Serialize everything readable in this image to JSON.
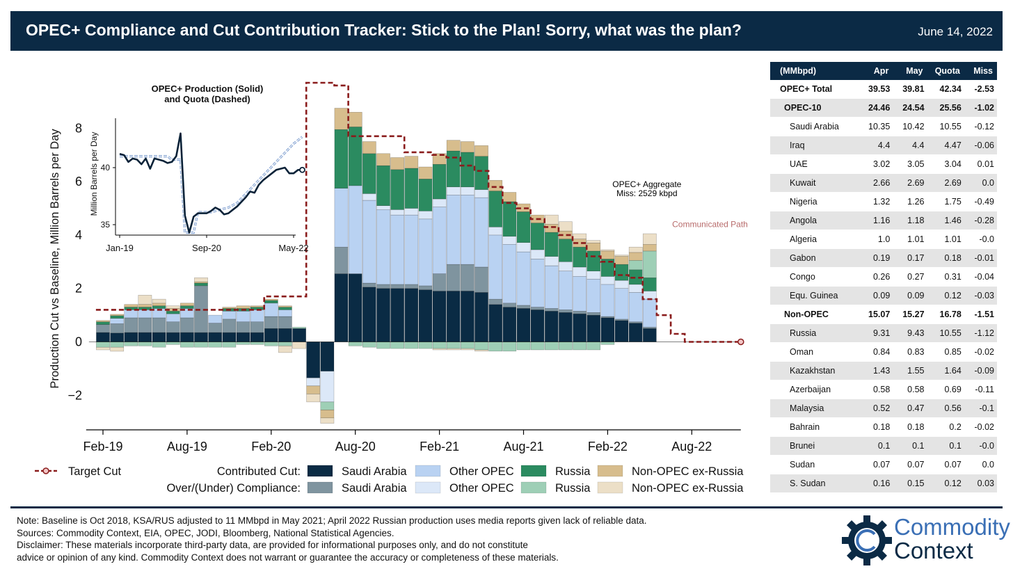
{
  "header": {
    "title": "OPEC+ Compliance and Cut Contribution Tracker: Stick to the Plan! Sorry, what was the plan?",
    "date": "June 14, 2022"
  },
  "colors": {
    "saudi_contrib": "#0a2b44",
    "saudi_over": "#7f949f",
    "other_contrib": "#b9d2f2",
    "other_over": "#dce8f8",
    "russia_contrib": "#2b8b60",
    "russia_over": "#9ecfb6",
    "nonopec_contrib": "#d7bd8d",
    "nonopec_over": "#ecdfc7",
    "target": "#8a1c1c",
    "header_bg": "#0b2a45"
  },
  "chart_data": [
    {
      "type": "bar",
      "stacked": true,
      "title": "",
      "xlabel": "",
      "ylabel": "Production Cut vs Baseline, Million Barrels per Day",
      "ylim": [
        -3.3,
        10
      ],
      "yticks": [
        -2,
        0,
        2,
        4,
        6,
        8
      ],
      "ytick_labels": [
        "−2",
        "0",
        "2",
        "4",
        "6",
        "8"
      ],
      "xtick_labels": [
        "Feb-19",
        "Aug-19",
        "Feb-20",
        "Aug-20",
        "Feb-21",
        "Aug-21",
        "Feb-22",
        "Aug-22"
      ],
      "xtick_month_index": [
        0,
        6,
        12,
        18,
        24,
        30,
        36,
        42
      ],
      "months_axis_end": 45.5,
      "categories": [
        "Jan-19",
        "Feb-19",
        "Mar-19",
        "Apr-19",
        "May-19",
        "Jun-19",
        "Jul-19",
        "Aug-19",
        "Sep-19",
        "Oct-19",
        "Nov-19",
        "Dec-19",
        "Jan-20",
        "Feb-20",
        "Mar-20",
        "Apr-20",
        "May-20",
        "Jun-20",
        "Jul-20",
        "Aug-20",
        "Sep-20",
        "Oct-20",
        "Nov-20",
        "Dec-20",
        "Jan-21",
        "Feb-21",
        "Mar-21",
        "Apr-21",
        "May-21",
        "Jun-21",
        "Jul-21",
        "Aug-21",
        "Sep-21",
        "Oct-21",
        "Nov-21",
        "Dec-21",
        "Jan-22",
        "Feb-22",
        "Mar-22",
        "Apr-22"
      ],
      "series": [
        {
          "name": "Saudi Arabia (Contributed Cut)",
          "color_key": "saudi_contrib",
          "values": [
            0.35,
            0.33,
            0.35,
            0.35,
            0.35,
            0.35,
            0.35,
            0.35,
            0.35,
            0.35,
            0.35,
            0.35,
            0.5,
            0.5,
            0.5,
            -1.35,
            -1.1,
            2.55,
            2.55,
            2.05,
            2.0,
            2.0,
            2.0,
            1.95,
            1.9,
            1.9,
            1.9,
            1.85,
            1.4,
            1.3,
            1.25,
            1.2,
            1.15,
            1.1,
            1.05,
            1.0,
            0.9,
            0.8,
            0.7,
            0.5
          ]
        },
        {
          "name": "Saudi Arabia (Over/(Under) Compliance)",
          "color_key": "saudi_over",
          "values": [
            0.3,
            0.35,
            0.55,
            0.55,
            0.55,
            0.4,
            0.55,
            1.75,
            0.35,
            0.5,
            0.4,
            0.4,
            0.45,
            0.45,
            0.0,
            0.0,
            0.0,
            1.0,
            0.0,
            0.15,
            0.15,
            0.15,
            0.15,
            0.15,
            0.65,
            1.0,
            1.0,
            0.95,
            0.2,
            0.15,
            0.12,
            0.1,
            0.1,
            0.1,
            0.1,
            0.1,
            0.05,
            0.05,
            0.05,
            0.05
          ]
        },
        {
          "name": "Other OPEC (Contributed Cut)",
          "color_key": "other_contrib",
          "values": [
            0.0,
            0.2,
            0.3,
            0.3,
            0.35,
            0.3,
            0.35,
            0.0,
            0.3,
            0.3,
            0.4,
            0.45,
            0.5,
            0.25,
            0.0,
            0.0,
            0.0,
            2.2,
            3.3,
            3.1,
            2.8,
            2.6,
            2.6,
            2.5,
            2.5,
            2.6,
            2.6,
            2.6,
            2.4,
            2.2,
            2.0,
            1.8,
            1.6,
            1.45,
            1.3,
            1.25,
            1.2,
            1.15,
            1.1,
            1.05
          ]
        },
        {
          "name": "Other OPEC (Over/(Under) Compliance)",
          "color_key": "other_over",
          "values": [
            0.0,
            0.0,
            0.0,
            0.0,
            0.0,
            0.0,
            0.0,
            0.0,
            0.0,
            0.0,
            0.0,
            0.0,
            0.0,
            0.0,
            0.0,
            -0.3,
            -1.15,
            0.0,
            0.0,
            0.25,
            0.15,
            0.2,
            0.25,
            0.3,
            0.3,
            0.3,
            0.3,
            0.3,
            0.3,
            0.3,
            0.35,
            0.35,
            0.35,
            0.35,
            0.35,
            0.3,
            0.3,
            0.3,
            0.3,
            0.3
          ]
        },
        {
          "name": "Russia (Contributed Cut)",
          "color_key": "russia_contrib",
          "values": [
            0.1,
            0.1,
            0.1,
            0.1,
            0.1,
            0.1,
            0.1,
            0.1,
            0.0,
            0.1,
            0.1,
            0.1,
            0.1,
            0.1,
            0.0,
            0.0,
            0.0,
            2.2,
            2.2,
            1.5,
            1.5,
            1.5,
            1.5,
            1.2,
            1.3,
            1.35,
            1.3,
            1.25,
            1.35,
            1.3,
            1.15,
            1.0,
            0.9,
            0.85,
            0.75,
            0.75,
            0.65,
            0.6,
            0.55,
            0.5
          ]
        },
        {
          "name": "Russia (Over/(Under) Compliance)",
          "color_key": "russia_over",
          "values": [
            -0.2,
            -0.2,
            -0.15,
            -0.15,
            -0.2,
            -0.1,
            -0.2,
            -0.2,
            -0.2,
            -0.2,
            -0.1,
            -0.1,
            -0.15,
            -0.15,
            0.05,
            0.0,
            -0.3,
            0.0,
            -0.15,
            -0.2,
            -0.25,
            -0.25,
            -0.25,
            -0.25,
            -0.25,
            -0.25,
            -0.25,
            -0.3,
            -0.35,
            -0.35,
            -0.3,
            -0.3,
            -0.3,
            -0.3,
            -0.3,
            -0.3,
            -0.1,
            0.0,
            0.35,
            1.0
          ]
        },
        {
          "name": "Non-OPEC ex-Russia (Contributed Cut)",
          "color_key": "nonopec_contrib",
          "values": [
            0.05,
            0.05,
            0.1,
            0.1,
            0.1,
            0.1,
            0.1,
            0.05,
            0.0,
            0.05,
            0.1,
            0.05,
            0.05,
            0.05,
            0.0,
            -0.3,
            -0.3,
            0.8,
            0.55,
            0.45,
            0.45,
            0.45,
            0.45,
            0.45,
            0.4,
            0.4,
            0.4,
            0.4,
            0.4,
            0.35,
            0.3,
            0.3,
            0.3,
            0.3,
            0.3,
            0.3,
            0.3,
            0.3,
            0.3,
            0.25
          ]
        },
        {
          "name": "Non-OPEC ex-Russia (Over/(Under) Compliance)",
          "color_key": "nonopec_over",
          "values": [
            -0.1,
            -0.15,
            0.0,
            0.35,
            0.15,
            0.1,
            0.0,
            0.15,
            0.0,
            0.0,
            0.0,
            0.0,
            0.0,
            -0.25,
            -0.25,
            -0.3,
            -0.2,
            0.0,
            0.0,
            0.0,
            0.0,
            0.0,
            0.0,
            0.0,
            -0.05,
            -0.05,
            -0.05,
            -0.05,
            0.0,
            0.0,
            0.0,
            0.0,
            0.35,
            0.35,
            0.2,
            0.1,
            0.05,
            0.05,
            0.2,
            0.4
          ]
        }
      ],
      "target_cut": {
        "name": "Target Cut",
        "months": [
          0,
          1,
          2,
          3,
          4,
          5,
          6,
          7,
          8,
          9,
          10,
          11,
          12,
          13,
          14,
          15,
          16,
          17,
          18,
          19,
          20,
          21,
          22,
          23,
          24,
          25,
          26,
          27,
          28,
          29,
          30,
          31,
          32,
          33,
          34,
          35,
          36,
          37,
          38,
          39,
          40,
          41,
          42,
          43,
          44,
          45
        ],
        "values": [
          1.2,
          1.2,
          1.2,
          1.2,
          1.2,
          1.2,
          1.2,
          1.2,
          1.2,
          1.2,
          1.2,
          1.2,
          1.7,
          1.7,
          1.7,
          9.7,
          9.7,
          9.6,
          7.7,
          7.7,
          7.7,
          7.7,
          7.1,
          7.1,
          7.0,
          6.9,
          6.6,
          6.4,
          5.8,
          5.2,
          5.0,
          4.6,
          4.3,
          4.0,
          3.7,
          3.2,
          3.0,
          2.5,
          2.4,
          1.6,
          1.0,
          0.3,
          0.0,
          0.0,
          0.0,
          0.0
        ]
      },
      "annotations": [
        {
          "text": "OPEC+ Aggregate",
          "month": 38.8,
          "y": 5.8
        },
        {
          "text": "Miss: 2529 kbpd",
          "month": 38.8,
          "y": 5.45
        }
      ],
      "path_label": {
        "text": "Communicated Path",
        "month": 43.3,
        "y": 4.3
      }
    },
    {
      "type": "line",
      "title": "OPEC+ Production (Solid) and Quota (Dashed)",
      "title_lines": [
        "OPEC+ Production (Solid)",
        "and Quota (Dashed)"
      ],
      "ylabel": "Million Barrels per Day",
      "ylim": [
        34,
        45
      ],
      "yticks": [
        35,
        40
      ],
      "xtick_labels": [
        "Jan-19",
        "Sep-20",
        "May-22"
      ],
      "xtick_month_index": [
        0,
        20,
        40
      ],
      "x": [
        0,
        1,
        2,
        3,
        4,
        5,
        6,
        7,
        8,
        9,
        10,
        11,
        12,
        13,
        14,
        15,
        16,
        17,
        18,
        19,
        20,
        21,
        22,
        23,
        24,
        25,
        26,
        27,
        28,
        29,
        30,
        31,
        32,
        33,
        34,
        35,
        36,
        37,
        38,
        39,
        40,
        41,
        42
      ],
      "series": [
        {
          "name": "Production",
          "style": "solid",
          "values": [
            41.2,
            41.1,
            40.5,
            40.8,
            40.7,
            40.3,
            40.8,
            39.9,
            40.8,
            40.7,
            40.6,
            40.4,
            40.5,
            41.0,
            43.0,
            35.8,
            34.3,
            35.7,
            36.0,
            36.0,
            36.0,
            36.2,
            36.5,
            36.3,
            35.9,
            36.0,
            36.3,
            36.6,
            37.0,
            37.4,
            37.9,
            37.8,
            38.5,
            38.9,
            39.2,
            39.5,
            39.8,
            39.9,
            40.0,
            39.5,
            39.5,
            39.8,
            39.8
          ]
        },
        {
          "name": "Quota",
          "style": "dashed",
          "values": [
            41.0,
            41.0,
            41.0,
            41.0,
            41.0,
            41.0,
            41.0,
            41.0,
            41.0,
            41.0,
            41.0,
            41.0,
            40.7,
            40.7,
            40.7,
            34.3,
            34.3,
            34.3,
            36.1,
            36.1,
            36.1,
            36.1,
            36.2,
            36.3,
            36.4,
            36.5,
            36.7,
            36.9,
            37.3,
            37.7,
            38.1,
            38.5,
            38.9,
            39.3,
            39.7,
            40.1,
            40.5,
            40.9,
            41.3,
            41.7,
            42.1,
            42.4,
            42.7
          ]
        }
      ]
    }
  ],
  "legend": {
    "target_label": "Target Cut",
    "row1_label": "Contributed Cut:",
    "row2_label": "Over/(Under) Compliance:",
    "items": [
      "Saudi Arabia",
      "Other OPEC",
      "Russia",
      "Non-OPEC ex-Russia"
    ]
  },
  "table": {
    "columns": [
      "(MMbpd)",
      "Apr",
      "May",
      "Quota",
      "Miss"
    ],
    "rows": [
      {
        "name": "OPEC+ Total",
        "level": 0,
        "bold": true,
        "values": [
          "39.53",
          "39.81",
          "42.34",
          "-2.53"
        ]
      },
      {
        "name": "OPEC-10",
        "level": 1,
        "bold": true,
        "values": [
          "24.46",
          "24.54",
          "25.56",
          "-1.02"
        ]
      },
      {
        "name": "Saudi Arabia",
        "level": 2,
        "bold": false,
        "values": [
          "10.35",
          "10.42",
          "10.55",
          "-0.12"
        ]
      },
      {
        "name": "Iraq",
        "level": 2,
        "bold": false,
        "values": [
          "4.4",
          "4.4",
          "4.47",
          "-0.06"
        ]
      },
      {
        "name": "UAE",
        "level": 2,
        "bold": false,
        "values": [
          "3.02",
          "3.05",
          "3.04",
          "0.01"
        ]
      },
      {
        "name": "Kuwait",
        "level": 2,
        "bold": false,
        "values": [
          "2.66",
          "2.69",
          "2.69",
          "0.0"
        ]
      },
      {
        "name": "Nigeria",
        "level": 2,
        "bold": false,
        "values": [
          "1.32",
          "1.26",
          "1.75",
          "-0.49"
        ]
      },
      {
        "name": "Angola",
        "level": 2,
        "bold": false,
        "values": [
          "1.16",
          "1.18",
          "1.46",
          "-0.28"
        ]
      },
      {
        "name": "Algeria",
        "level": 2,
        "bold": false,
        "values": [
          "1.0",
          "1.01",
          "1.01",
          "-0.0"
        ]
      },
      {
        "name": "Gabon",
        "level": 2,
        "bold": false,
        "values": [
          "0.19",
          "0.17",
          "0.18",
          "-0.01"
        ]
      },
      {
        "name": "Congo",
        "level": 2,
        "bold": false,
        "values": [
          "0.26",
          "0.27",
          "0.31",
          "-0.04"
        ]
      },
      {
        "name": "Equ. Guinea",
        "level": 2,
        "bold": false,
        "values": [
          "0.09",
          "0.09",
          "0.12",
          "-0.03"
        ]
      },
      {
        "name": "Non-OPEC",
        "level": 1,
        "bold": true,
        "values": [
          "15.07",
          "15.27",
          "16.78",
          "-1.51"
        ]
      },
      {
        "name": "Russia",
        "level": 2,
        "bold": false,
        "values": [
          "9.31",
          "9.43",
          "10.55",
          "-1.12"
        ]
      },
      {
        "name": "Oman",
        "level": 2,
        "bold": false,
        "values": [
          "0.84",
          "0.83",
          "0.85",
          "-0.02"
        ]
      },
      {
        "name": "Kazakhstan",
        "level": 2,
        "bold": false,
        "values": [
          "1.43",
          "1.55",
          "1.64",
          "-0.09"
        ]
      },
      {
        "name": "Azerbaijan",
        "level": 2,
        "bold": false,
        "values": [
          "0.58",
          "0.58",
          "0.69",
          "-0.11"
        ]
      },
      {
        "name": "Malaysia",
        "level": 2,
        "bold": false,
        "values": [
          "0.52",
          "0.47",
          "0.56",
          "-0.1"
        ]
      },
      {
        "name": "Bahrain",
        "level": 2,
        "bold": false,
        "values": [
          "0.18",
          "0.18",
          "0.2",
          "-0.02"
        ]
      },
      {
        "name": "Brunei",
        "level": 2,
        "bold": false,
        "values": [
          "0.1",
          "0.1",
          "0.1",
          "-0.0"
        ]
      },
      {
        "name": "Sudan",
        "level": 2,
        "bold": false,
        "values": [
          "0.07",
          "0.07",
          "0.07",
          "0.0"
        ]
      },
      {
        "name": "S. Sudan",
        "level": 2,
        "bold": false,
        "values": [
          "0.16",
          "0.15",
          "0.12",
          "0.03"
        ]
      }
    ]
  },
  "footer": {
    "note": "Note: Baseline is Oct 2018, KSA/RUS adjusted to 11 MMbpd in May 2021; April 2022 Russian production uses media reports given lack of reliable data.",
    "sources": "Sources: Commodity Context, EIA, OPEC, JODI, Bloomberg, National Statistical Agencies.",
    "disclaimer1": "Disclaimer: These materials incorporate third-party data, are provided for informational purposes only, and do not constitute",
    "disclaimer2": "advice or opinion of any kind. Commodity Context does not warrant or guarantee the accuracy or completeness of these materials."
  },
  "logo": {
    "word1": "Commodity",
    "word2": "Context"
  }
}
